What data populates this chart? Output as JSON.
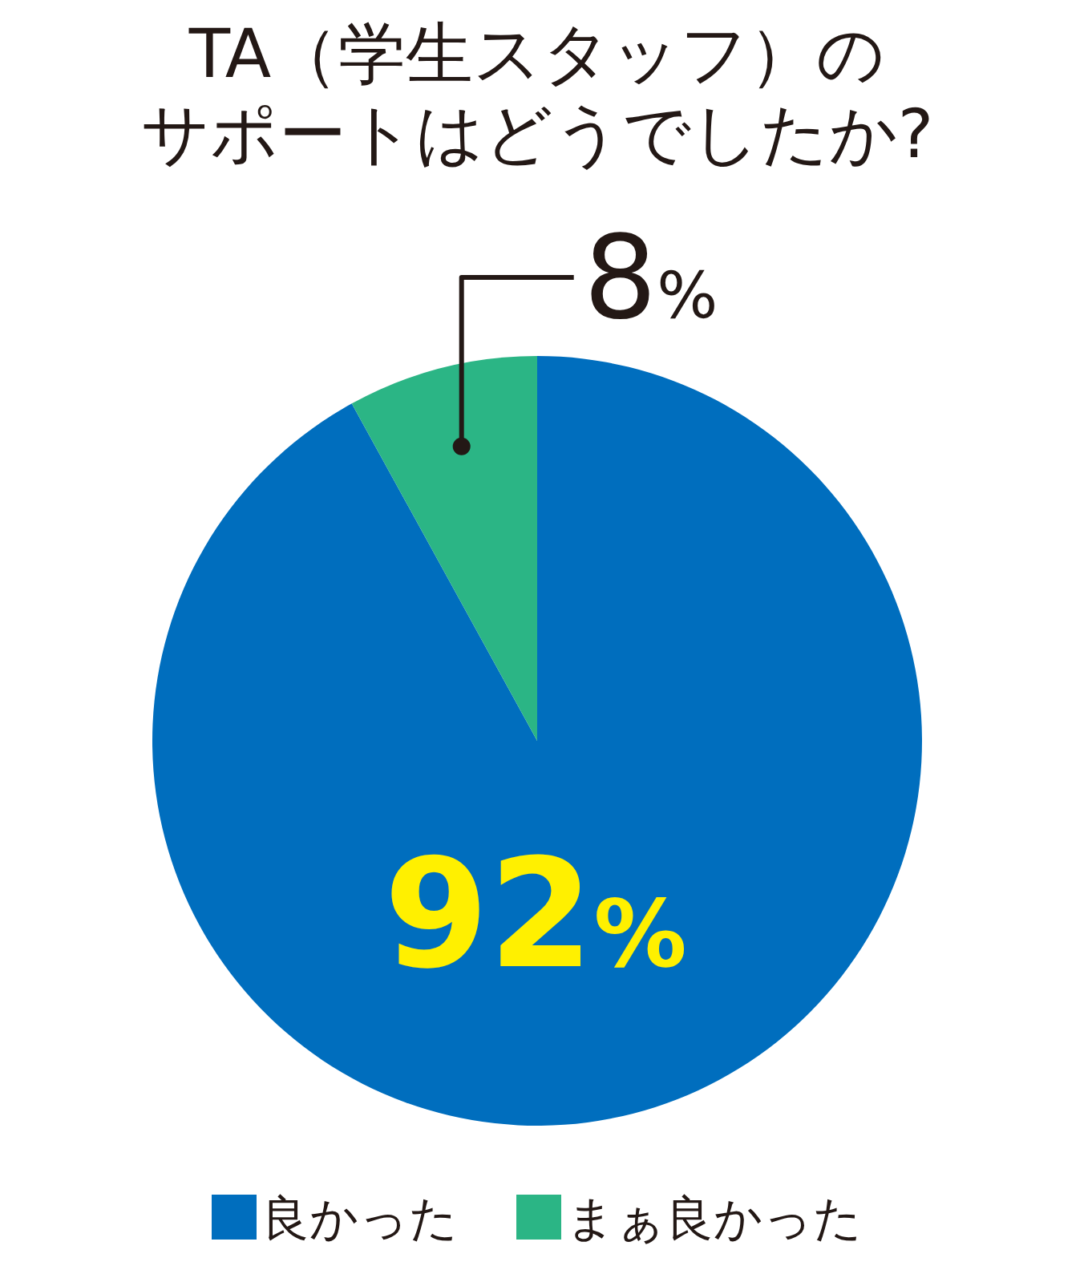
{
  "chart_data": {
    "type": "pie",
    "title": "TA（学生スタッフ）のサポートはどうでしたか?",
    "categories": [
      "良かった",
      "まぁ良かった"
    ],
    "values": [
      92,
      8
    ],
    "colors": [
      "#006ebe",
      "#2bb585"
    ],
    "value_labels": [
      "92%",
      "8%"
    ],
    "legend": "bottom"
  }
}
